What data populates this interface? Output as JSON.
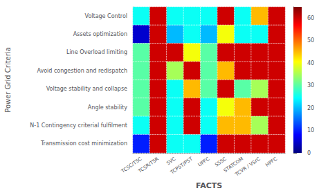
{
  "chart_data": {
    "type": "heatmap",
    "xlabel": "FACTS",
    "ylabel": "Power Grid Criteria",
    "categories": [
      "TCSC/TSC",
      "TCSR/TSR",
      "SVC",
      "TCPST/PST",
      "UPFC",
      "SSSC",
      "STATCOM",
      "TCVR / VSrC",
      "HPFC"
    ],
    "rows": [
      "Voltage Control",
      "Assets optimization",
      "Line Overload limiting",
      "Avoid congestion and redispatch",
      "Voltage stability and collapse",
      "Angle stability",
      "N-1 Contingency criterial fulfilment",
      "Transmission cost minimization"
    ],
    "values": [
      [
        25,
        60,
        25,
        25,
        25,
        60,
        25,
        45,
        60
      ],
      [
        5,
        60,
        20,
        25,
        20,
        40,
        25,
        25,
        60
      ],
      [
        30,
        60,
        60,
        40,
        30,
        60,
        60,
        60,
        60
      ],
      [
        30,
        60,
        35,
        60,
        30,
        45,
        60,
        60,
        60
      ],
      [
        30,
        60,
        25,
        45,
        30,
        60,
        30,
        35,
        60
      ],
      [
        30,
        60,
        25,
        60,
        25,
        40,
        45,
        60,
        60
      ],
      [
        25,
        60,
        25,
        60,
        25,
        45,
        45,
        35,
        60
      ],
      [
        10,
        60,
        25,
        25,
        10,
        60,
        60,
        60,
        60
      ]
    ],
    "colorbar_range": [
      0,
      65
    ],
    "colorbar_ticks": [
      0,
      10,
      20,
      30,
      40,
      50,
      60
    ],
    "grid": true
  }
}
